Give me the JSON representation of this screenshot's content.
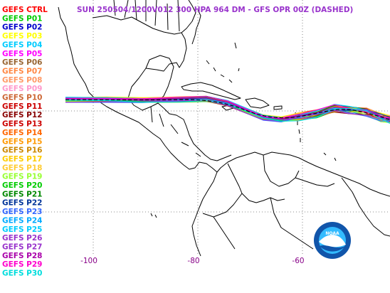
{
  "title": "SUN 250504/1200V012  300 HPA 964 DM - GFS OPR 00Z (DASHED)",
  "title_color": "#9933cc",
  "legend": [
    {
      "label": "GEFS CTRL",
      "color": "#ff0000"
    },
    {
      "label": "GEFS P01",
      "color": "#00cc00"
    },
    {
      "label": "GEFS P02",
      "color": "#0000cc"
    },
    {
      "label": "GEFS P03",
      "color": "#ffff00"
    },
    {
      "label": "GEFS P04",
      "color": "#00ccff"
    },
    {
      "label": "GEFS P05",
      "color": "#ff00ff"
    },
    {
      "label": "GEFS P06",
      "color": "#996633"
    },
    {
      "label": "GEFS P07",
      "color": "#ff8844"
    },
    {
      "label": "GEFS P08",
      "color": "#ff9966"
    },
    {
      "label": "GEFS P09",
      "color": "#ff99cc"
    },
    {
      "label": "GEFS P10",
      "color": "#cc6633"
    },
    {
      "label": "GEFS P11",
      "color": "#cc0000"
    },
    {
      "label": "GEFS P12",
      "color": "#880000"
    },
    {
      "label": "GEFS P13",
      "color": "#cc0000"
    },
    {
      "label": "GEFS P14",
      "color": "#ff6600"
    },
    {
      "label": "GEFS P15",
      "color": "#ff9900"
    },
    {
      "label": "GEFS P16",
      "color": "#cc8800"
    },
    {
      "label": "GEFS P17",
      "color": "#ffcc00"
    },
    {
      "label": "GEFS P18",
      "color": "#ffcc33"
    },
    {
      "label": "GEFS P19",
      "color": "#99ff33"
    },
    {
      "label": "GEFS P20",
      "color": "#00cc00"
    },
    {
      "label": "GEFS P21",
      "color": "#008800"
    },
    {
      "label": "GEFS P22",
      "color": "#003399"
    },
    {
      "label": "GEFS P23",
      "color": "#3366ff"
    },
    {
      "label": "GEFS P24",
      "color": "#00aaff"
    },
    {
      "label": "GEFS P25",
      "color": "#00ccff"
    },
    {
      "label": "GEFS P26",
      "color": "#9933cc"
    },
    {
      "label": "GEFS P27",
      "color": "#9933cc"
    },
    {
      "label": "GEFS P28",
      "color": "#aa00aa"
    },
    {
      "label": "GEFS P29",
      "color": "#ff00cc"
    },
    {
      "label": "GEFS P30",
      "color": "#00dddd"
    }
  ],
  "lon_ticks": [
    {
      "label": "-100",
      "lon": -100
    },
    {
      "label": "-80",
      "lon": -80
    },
    {
      "label": "-60",
      "lon": -60
    }
  ],
  "lat_grid": [
    20,
    0
  ],
  "tick_color": "#880088",
  "logo": {
    "text": "NOAA",
    "colors": [
      "#1155aa",
      "#33bbff",
      "#ffffff"
    ]
  }
}
